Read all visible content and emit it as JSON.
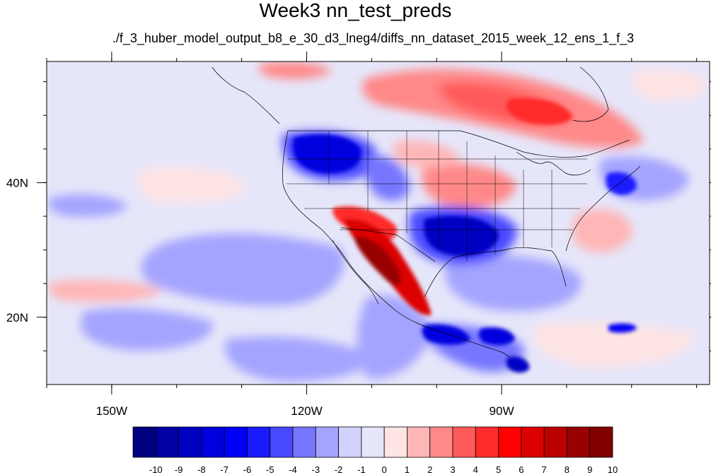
{
  "title": "Week3 nn_test_preds",
  "subtitle": "./f_3_huber_model_output_b8_e_30_d3_lneg4/diffs_nn_dataset_2015_week_12_ens_1_f_3",
  "map": {
    "lon_range": [
      -160,
      -58
    ],
    "lat_range": [
      10,
      58
    ],
    "lon_ticks": [
      {
        "value": -150,
        "label": "150W"
      },
      {
        "value": -120,
        "label": "120W"
      },
      {
        "value": -90,
        "label": "90W"
      }
    ],
    "lat_ticks": [
      {
        "value": 40,
        "label": "40N"
      },
      {
        "value": 20,
        "label": "20N"
      }
    ],
    "field_min_lon": -160,
    "field_max_lon": -58,
    "field_min_lat": 10,
    "field_max_lat": 58
  },
  "colorbar": {
    "labels": [
      "-10",
      "-9",
      "-8",
      "-7",
      "-6",
      "-5",
      "-4",
      "-3",
      "-2",
      "-1",
      "0",
      "1",
      "2",
      "3",
      "4",
      "5",
      "6",
      "7",
      "8",
      "9",
      "10"
    ],
    "colors": [
      "#000080",
      "#0000a3",
      "#0000c2",
      "#0000de",
      "#0000f5",
      "#1a1aff",
      "#4848ff",
      "#7676ff",
      "#a4a4ff",
      "#d2d2ff",
      "#e6e6fa",
      "#ffe4e4",
      "#ffb6b6",
      "#ff8888",
      "#ff5a5a",
      "#ff2c2c",
      "#ff0000",
      "#dd0000",
      "#bb0000",
      "#990000",
      "#800000"
    ]
  }
}
